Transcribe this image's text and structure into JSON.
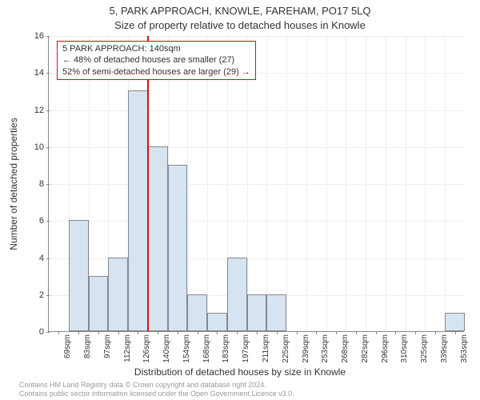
{
  "title_line1": "5, PARK APPROACH, KNOWLE, FAREHAM, PO17 5LQ",
  "title_line2": "Size of property relative to detached houses in Knowle",
  "ylabel": "Number of detached properties",
  "xlabel": "Distribution of detached houses by size in Knowle",
  "chart": {
    "type": "bar",
    "ylim": [
      0,
      16
    ],
    "ytick_step": 2,
    "yticks": [
      0,
      2,
      4,
      6,
      8,
      10,
      12,
      14,
      16
    ],
    "categories": [
      "69sqm",
      "83sqm",
      "97sqm",
      "112sqm",
      "126sqm",
      "140sqm",
      "154sqm",
      "168sqm",
      "183sqm",
      "197sqm",
      "211sqm",
      "225sqm",
      "239sqm",
      "253sqm",
      "268sqm",
      "282sqm",
      "296sqm",
      "310sqm",
      "325sqm",
      "339sqm",
      "353sqm"
    ],
    "values": [
      0,
      6,
      3,
      4,
      13,
      10,
      9,
      2,
      1,
      4,
      2,
      2,
      0,
      0,
      0,
      0,
      0,
      0,
      0,
      0,
      1
    ],
    "bar_fill": "#d6e4f2",
    "bar_border": "#888888",
    "grid_color": "#eeeeee",
    "background_color": "#ffffff",
    "marker": {
      "position_index": 5,
      "color": "#d11"
    },
    "bar_width_ratio": 1.0
  },
  "legend": {
    "line1": "5 PARK APPROACH: 140sqm",
    "line2": "← 48% of detached houses are smaller (27)",
    "line3": "52% of semi-detached houses are larger (29) →"
  },
  "footer": {
    "line1": "Contains HM Land Registry data © Crown copyright and database right 2024.",
    "line2": "Contains public sector information licensed under the Open Government Licence v3.0."
  }
}
